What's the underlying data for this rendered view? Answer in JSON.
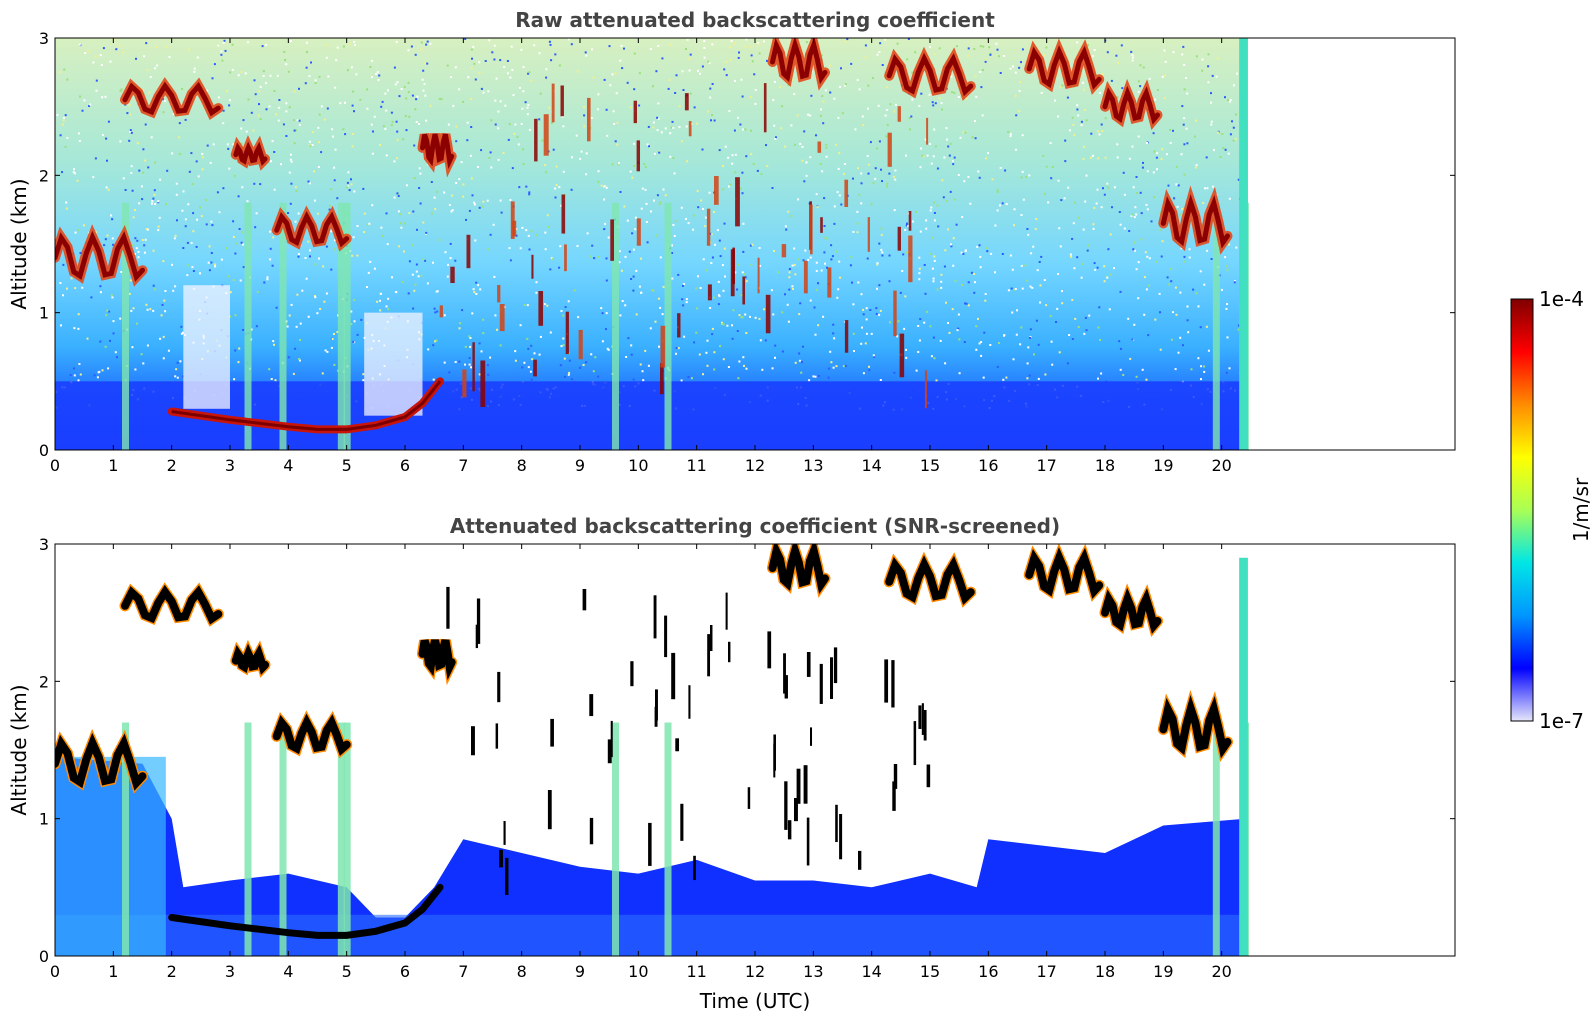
{
  "chart_data": [
    {
      "type": "heatmap",
      "title": "Raw attenuated backscattering coefficient",
      "xlabel": "",
      "ylabel": "Altitude (km)",
      "xlim": [
        0,
        24
      ],
      "ylim": [
        0,
        3
      ],
      "x_ticks": [
        "0",
        "1",
        "2",
        "3",
        "4",
        "5",
        "6",
        "7",
        "8",
        "9",
        "10",
        "11",
        "12",
        "13",
        "14",
        "15",
        "16",
        "17",
        "18",
        "19",
        "20"
      ],
      "y_ticks": [
        "0",
        "1",
        "2",
        "3"
      ],
      "data_extent_hours": 20.45,
      "features": {
        "low_aerosol_layer": {
          "x": [
            0,
            20.45
          ],
          "top_km": 0.5
        },
        "boundary_layer_top_curve": [
          [
            2.0,
            0.28
          ],
          [
            3.0,
            0.22
          ],
          [
            4.0,
            0.17
          ],
          [
            4.5,
            0.15
          ],
          [
            5.0,
            0.15
          ],
          [
            5.5,
            0.18
          ],
          [
            6.0,
            0.24
          ],
          [
            6.3,
            0.34
          ],
          [
            6.6,
            0.5
          ]
        ],
        "cloud_layers": [
          {
            "x": [
              0,
              1.5
            ],
            "y_km": [
              1.25,
              1.55
            ]
          },
          {
            "x": [
              1.2,
              2.8
            ],
            "y_km": [
              2.45,
              2.65
            ]
          },
          {
            "x": [
              3.1,
              3.6
            ],
            "y_km": [
              2.1,
              2.2
            ]
          },
          {
            "x": [
              3.8,
              5.0
            ],
            "y_km": [
              1.5,
              1.7
            ]
          },
          {
            "x": [
              6.3,
              6.8
            ],
            "y_km": [
              2.1,
              2.3
            ]
          },
          {
            "x": [
              12.3,
              13.2
            ],
            "y_km": [
              2.7,
              2.95
            ]
          },
          {
            "x": [
              14.3,
              15.7
            ],
            "y_km": [
              2.6,
              2.85
            ]
          },
          {
            "x": [
              16.7,
              17.9
            ],
            "y_km": [
              2.65,
              2.9
            ]
          },
          {
            "x": [
              18.0,
              18.9
            ],
            "y_km": [
              2.4,
              2.6
            ]
          },
          {
            "x": [
              19.0,
              20.1
            ],
            "y_km": [
              1.5,
              1.8
            ]
          }
        ],
        "vertical_streaks_hours": [
          1.2,
          3.3,
          3.9,
          4.9,
          5.0,
          9.6,
          10.5,
          19.9,
          20.4
        ]
      }
    },
    {
      "type": "heatmap",
      "title": "Attenuated backscattering coefficient (SNR-screened)",
      "xlabel": "Time (UTC)",
      "ylabel": "Altitude (km)",
      "xlim": [
        0,
        24
      ],
      "ylim": [
        0,
        3
      ],
      "x_ticks": [
        "0",
        "1",
        "2",
        "3",
        "4",
        "5",
        "6",
        "7",
        "8",
        "9",
        "10",
        "11",
        "12",
        "13",
        "14",
        "15",
        "16",
        "17",
        "18",
        "19",
        "20"
      ],
      "y_ticks": [
        "0",
        "1",
        "2",
        "3"
      ],
      "data_extent_hours": 20.45,
      "screened_top_profile": [
        [
          0,
          1.45
        ],
        [
          1.5,
          1.4
        ],
        [
          2.0,
          1.0
        ],
        [
          2.2,
          0.5
        ],
        [
          3.0,
          0.55
        ],
        [
          4.0,
          0.6
        ],
        [
          5.0,
          0.5
        ],
        [
          5.5,
          0.28
        ],
        [
          6.0,
          0.28
        ],
        [
          6.5,
          0.5
        ],
        [
          7.0,
          0.85
        ],
        [
          8.0,
          0.75
        ],
        [
          9.0,
          0.65
        ],
        [
          10.0,
          0.6
        ],
        [
          11.0,
          0.7
        ],
        [
          12.0,
          0.55
        ],
        [
          13.0,
          0.55
        ],
        [
          14.0,
          0.5
        ],
        [
          15.0,
          0.6
        ],
        [
          15.8,
          0.5
        ],
        [
          16.0,
          0.85
        ],
        [
          17.0,
          0.8
        ],
        [
          18.0,
          0.75
        ],
        [
          19.0,
          0.95
        ],
        [
          20.4,
          1.0
        ]
      ]
    }
  ],
  "colorbar": {
    "label": "1/m/sr",
    "max_label": "1e-4",
    "min_label": "1e-7",
    "scale": "log",
    "colormap": [
      "#e6e6fa",
      "#0000ff",
      "#0096ff",
      "#00e6e6",
      "#aaff55",
      "#ffff00",
      "#ff8c00",
      "#ff0000",
      "#800000"
    ]
  },
  "colors": {
    "background_white": "#ffffff",
    "low_layer_blue": "#1a3cff",
    "cloud_dark_red": "#8b0000",
    "screened_black": "#000000"
  }
}
